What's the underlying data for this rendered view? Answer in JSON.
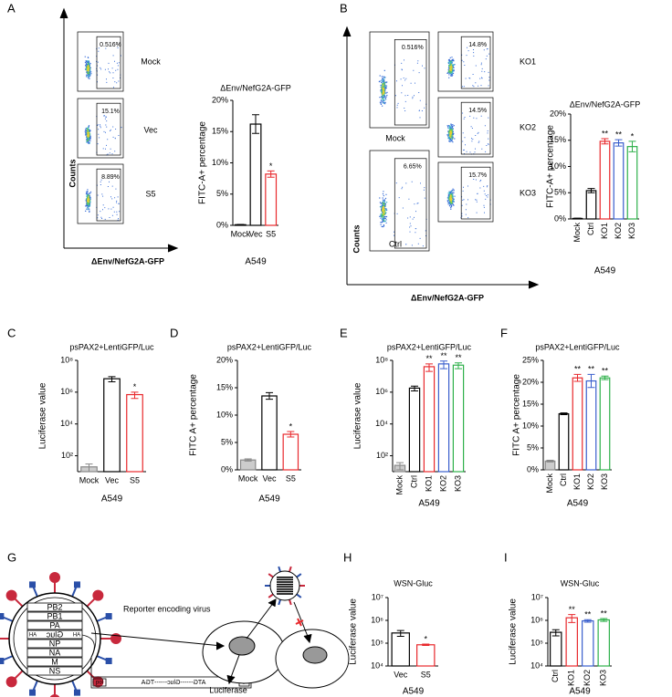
{
  "panels": [
    "A",
    "B",
    "C",
    "D",
    "E",
    "F",
    "G",
    "H",
    "I"
  ],
  "flow": {
    "A": {
      "y_label": "Counts",
      "x_label": "ΔEnv/NefG2A-GFP",
      "plots": [
        {
          "name": "Mock",
          "gate": "0.516%"
        },
        {
          "name": "Vec",
          "gate": "15.1%"
        },
        {
          "name": "S5",
          "gate": "8.89%"
        }
      ]
    },
    "B": {
      "y_label": "Counts",
      "x_label": "ΔEnv/NefG2A-GFP",
      "plots": [
        {
          "name": "Mock",
          "gate": "0.516%"
        },
        {
          "name": "Ctrl",
          "gate": "6.65%"
        },
        {
          "name": "KO1",
          "gate": "14.8%"
        },
        {
          "name": "KO2",
          "gate": "14.5%"
        },
        {
          "name": "KO3",
          "gate": "15.7%"
        }
      ]
    }
  },
  "chart_data": [
    {
      "type": "bar",
      "title": "ΔEnv/NefG2A-GFP",
      "y_label": "FITC-A+ percentage",
      "x_label": "A549",
      "categories": [
        "Mock",
        "Vec",
        "S5"
      ],
      "values": [
        0.1,
        16.2,
        8.2
      ],
      "errors": [
        0.05,
        1.5,
        0.5
      ],
      "colors": [
        "#000000",
        "#000000",
        "#e8282c"
      ],
      "fill_colors": [
        "#ffffff",
        "#ffffff",
        "#ffffff"
      ],
      "significance": [
        null,
        null,
        "*"
      ],
      "ylim": [
        0,
        20
      ],
      "yticks": [
        {
          "value": 0,
          "label": "0%"
        },
        {
          "value": 5,
          "label": "5%"
        },
        {
          "value": 10,
          "label": "10%"
        },
        {
          "value": 15,
          "label": "15%"
        },
        {
          "value": 20,
          "label": "20%"
        }
      ]
    },
    {
      "type": "bar",
      "title": "ΔEnv/NefG2A-GFP",
      "y_label": "FITC-A+ percentage",
      "x_label": "A549",
      "categories": [
        "Mock",
        "Ctrl",
        "KO1",
        "KO2",
        "KO3"
      ],
      "values": [
        0.1,
        5.4,
        14.8,
        14.5,
        13.8
      ],
      "errors": [
        0.05,
        0.4,
        0.5,
        0.6,
        1.0
      ],
      "colors": [
        "#000000",
        "#000000",
        "#e8282c",
        "#3a5fcd",
        "#2eb04a"
      ],
      "fill_colors": [
        "#ffffff",
        "#ffffff",
        "#ffffff",
        "#ffffff",
        "#ffffff"
      ],
      "significance": [
        null,
        null,
        "**",
        "**",
        "*"
      ],
      "ylim": [
        0,
        20
      ],
      "yticks": [
        {
          "value": 0,
          "label": "0%"
        },
        {
          "value": 5,
          "label": "5%"
        },
        {
          "value": 10,
          "label": "10%"
        },
        {
          "value": 15,
          "label": "15%"
        },
        {
          "value": 20,
          "label": "20%"
        }
      ]
    },
    {
      "type": "bar",
      "title": "psPAX2+LentiGFP/Luc",
      "y_label": "Luciferase value",
      "x_label": "A549",
      "log_scale": true,
      "categories": [
        "Mock",
        "Vec",
        "S5"
      ],
      "values": [
        20,
        7000000,
        700000
      ],
      "errors": [
        10,
        2500000,
        300000
      ],
      "colors": [
        "#888888",
        "#000000",
        "#e8282c"
      ],
      "fill_colors": [
        "#cccccc",
        "#ffffff",
        "#ffffff"
      ],
      "significance": [
        null,
        null,
        "*"
      ],
      "ylim": [
        10,
        100000000
      ],
      "yticks": [
        {
          "value": 100,
          "label": "10²"
        },
        {
          "value": 10000,
          "label": "10⁴"
        },
        {
          "value": 1000000,
          "label": "10⁶"
        },
        {
          "value": 100000000,
          "label": "10⁸"
        }
      ]
    },
    {
      "type": "bar",
      "title": "psPAX2+LentiGFP/Luc",
      "y_label": "FITC A+ percentage",
      "x_label": "A549",
      "categories": [
        "Mock",
        "Vec",
        "S5"
      ],
      "values": [
        1.8,
        13.5,
        6.5
      ],
      "errors": [
        0.2,
        0.6,
        0.5
      ],
      "colors": [
        "#888888",
        "#000000",
        "#e8282c"
      ],
      "fill_colors": [
        "#cccccc",
        "#ffffff",
        "#ffffff"
      ],
      "significance": [
        null,
        null,
        "*"
      ],
      "ylim": [
        0,
        20
      ],
      "yticks": [
        {
          "value": 0,
          "label": "0%"
        },
        {
          "value": 5,
          "label": "5%"
        },
        {
          "value": 10,
          "label": "10%"
        },
        {
          "value": 15,
          "label": "15%"
        },
        {
          "value": 20,
          "label": "20%"
        }
      ]
    },
    {
      "type": "bar",
      "title": "psPAX2+LentiGFP/Luc",
      "y_label": "Luciferase value",
      "x_label": "A549",
      "log_scale": true,
      "categories": [
        "Mock",
        "Ctrl",
        "KO1",
        "KO2",
        "KO3"
      ],
      "values": [
        25,
        1800000,
        40000000,
        60000000,
        50000000
      ],
      "errors": [
        12,
        600000,
        20000000,
        30000000,
        20000000
      ],
      "colors": [
        "#888888",
        "#000000",
        "#e8282c",
        "#3a5fcd",
        "#2eb04a"
      ],
      "fill_colors": [
        "#cccccc",
        "#ffffff",
        "#ffffff",
        "#ffffff",
        "#ffffff"
      ],
      "significance": [
        null,
        null,
        "**",
        "**",
        "**"
      ],
      "ylim": [
        10,
        100000000
      ],
      "yticks": [
        {
          "value": 100,
          "label": "10²"
        },
        {
          "value": 10000,
          "label": "10⁴"
        },
        {
          "value": 1000000,
          "label": "10⁶"
        },
        {
          "value": 100000000,
          "label": "10⁸"
        }
      ]
    },
    {
      "type": "bar",
      "title": "psPAX2+LentiGFP/Luc",
      "y_label": "FITC A+ percentage",
      "x_label": "A549",
      "categories": [
        "Mock",
        "Ctrl",
        "KO1",
        "KO2",
        "KO3"
      ],
      "values": [
        2,
        12.8,
        21,
        20.3,
        21
      ],
      "errors": [
        0.2,
        0.2,
        0.8,
        1.5,
        0.4
      ],
      "colors": [
        "#888888",
        "#000000",
        "#e8282c",
        "#3a5fcd",
        "#2eb04a"
      ],
      "fill_colors": [
        "#cccccc",
        "#ffffff",
        "#ffffff",
        "#ffffff",
        "#ffffff"
      ],
      "significance": [
        null,
        null,
        "**",
        "**",
        "**"
      ],
      "ylim": [
        0,
        25
      ],
      "yticks": [
        {
          "value": 0,
          "label": "0%"
        },
        {
          "value": 5,
          "label": "5%"
        },
        {
          "value": 10,
          "label": "10%"
        },
        {
          "value": 15,
          "label": "15%"
        },
        {
          "value": 20,
          "label": "20%"
        },
        {
          "value": 25,
          "label": "25%"
        }
      ]
    },
    {
      "type": "bar",
      "title": "WSN-Gluc",
      "y_label": "Luciferase value",
      "x_label": "A549",
      "log_scale": true,
      "categories": [
        "Vec",
        "S5"
      ],
      "values": [
        280000,
        85000
      ],
      "errors": [
        80000,
        6000
      ],
      "colors": [
        "#000000",
        "#e8282c"
      ],
      "fill_colors": [
        "#ffffff",
        "#ffffff"
      ],
      "significance": [
        null,
        "*"
      ],
      "ylim": [
        10000,
        10000000
      ],
      "yticks": [
        {
          "value": 10000,
          "label": "10⁴"
        },
        {
          "value": 100000,
          "label": "10⁵"
        },
        {
          "value": 1000000,
          "label": "10⁶"
        },
        {
          "value": 10000000,
          "label": "10⁷"
        }
      ]
    },
    {
      "type": "bar",
      "title": "WSN-Gluc",
      "y_label": "Luciferase value",
      "x_label": "A549",
      "log_scale": true,
      "categories": [
        "Ctrl",
        "KO1",
        "KO2",
        "KO3"
      ],
      "values": [
        300000,
        1300000,
        950000,
        1050000
      ],
      "errors": [
        90000,
        500000,
        120000,
        150000
      ],
      "colors": [
        "#000000",
        "#e8282c",
        "#3a5fcd",
        "#2eb04a"
      ],
      "fill_colors": [
        "#ffffff",
        "#ffffff",
        "#ffffff",
        "#ffffff"
      ],
      "significance": [
        null,
        "**",
        "**",
        "**"
      ],
      "ylim": [
        10000,
        10000000
      ],
      "yticks": [
        {
          "value": 10000,
          "label": "10⁴"
        },
        {
          "value": 100000,
          "label": "10⁵"
        },
        {
          "value": 1000000,
          "label": "10⁶"
        },
        {
          "value": 10000000,
          "label": "10⁷"
        }
      ]
    }
  ],
  "diagram": {
    "segments": [
      "PB2",
      "PB1",
      "PA",
      "HA",
      "NP",
      "NA",
      "M",
      "NS"
    ],
    "reporter": "Gluc",
    "caption": "Reporter encoding virus",
    "product": "Luciferase",
    "construct": {
      "promoter": "pol",
      "orf": "ATG------Gluc------TGA",
      "end": "I"
    }
  }
}
